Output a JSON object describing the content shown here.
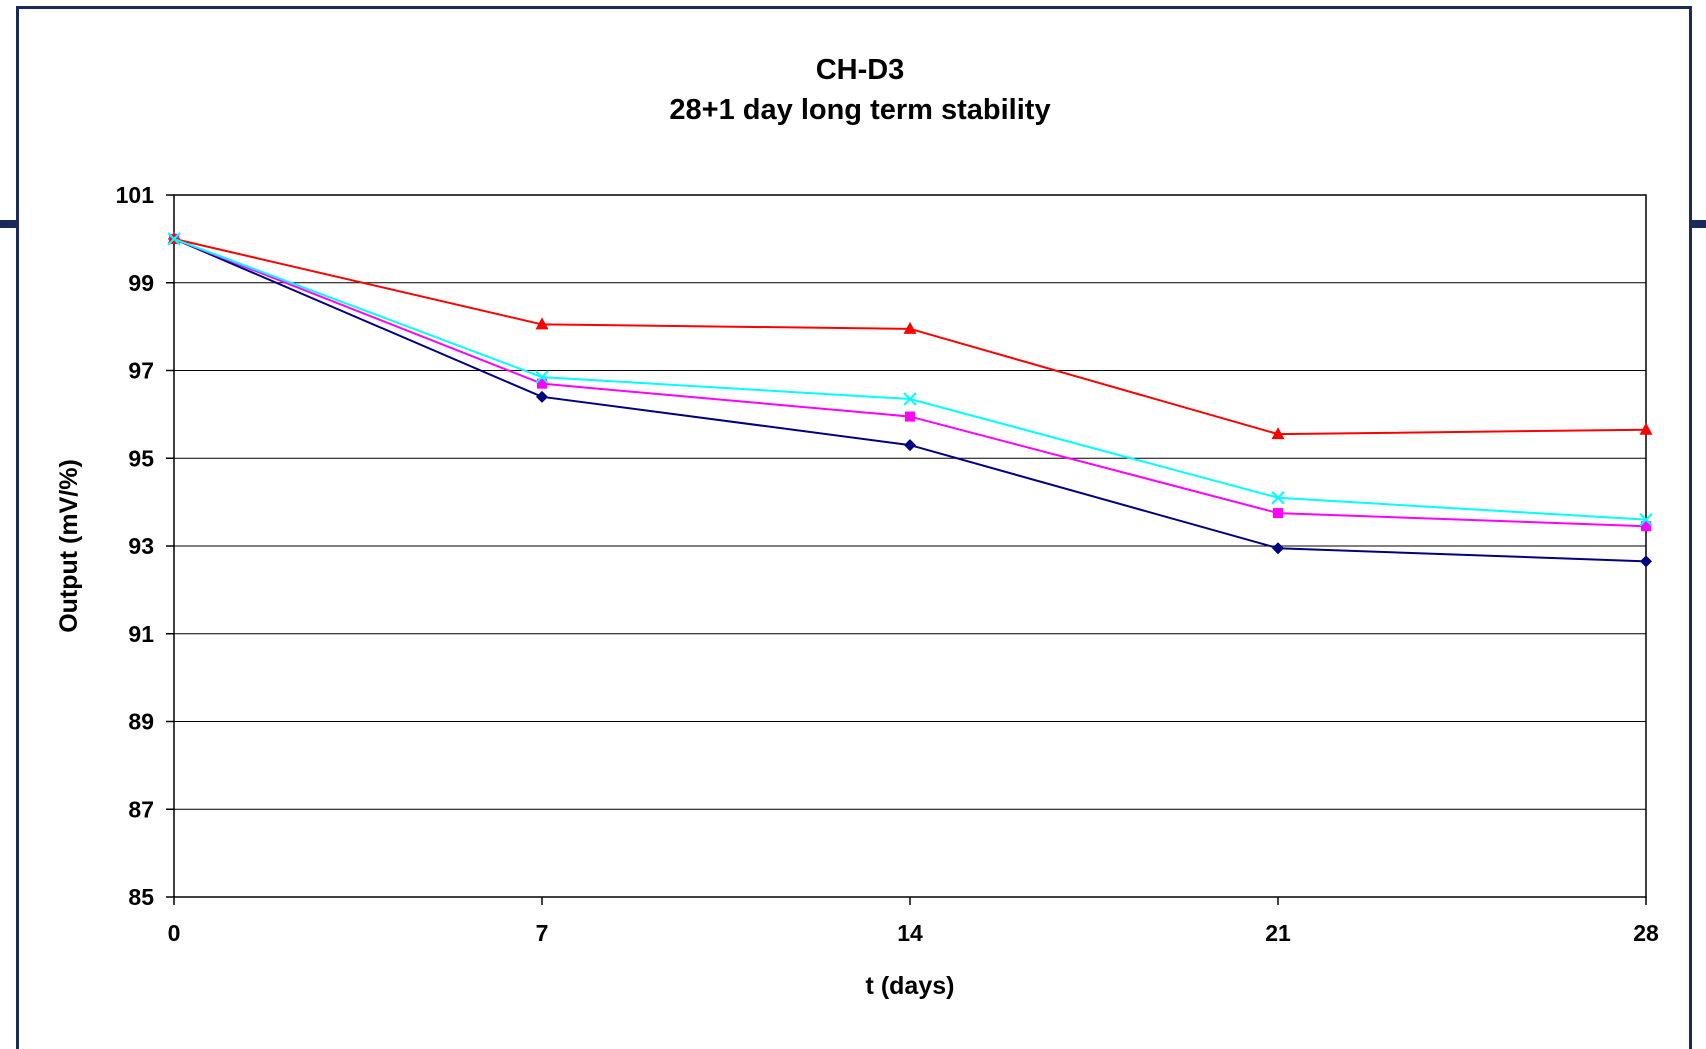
{
  "chart_data": {
    "type": "line",
    "title_lines": [
      "CH-D3",
      "28+1 day long term stability"
    ],
    "xlabel": "t (days)",
    "ylabel": "Output (mV/%)",
    "x": [
      0,
      7,
      14,
      21,
      28
    ],
    "xlim": [
      0,
      28
    ],
    "ylim": [
      85,
      101
    ],
    "yticks": [
      85,
      87,
      89,
      91,
      93,
      95,
      97,
      99,
      101
    ],
    "grid": "horizontal",
    "legend": "none",
    "series": [
      {
        "color": "#000080",
        "marker": "diamond",
        "values": [
          100.0,
          96.4,
          95.3,
          92.95,
          92.65
        ]
      },
      {
        "color": "#ff00ff",
        "marker": "square",
        "values": [
          100.0,
          96.7,
          95.95,
          93.75,
          93.45
        ]
      },
      {
        "color": "#ff0000",
        "marker": "triangle",
        "values": [
          100.0,
          98.05,
          97.95,
          95.55,
          95.65
        ]
      },
      {
        "color": "#00ffff",
        "marker": "x",
        "values": [
          100.0,
          96.85,
          96.35,
          94.1,
          93.6
        ]
      }
    ]
  }
}
